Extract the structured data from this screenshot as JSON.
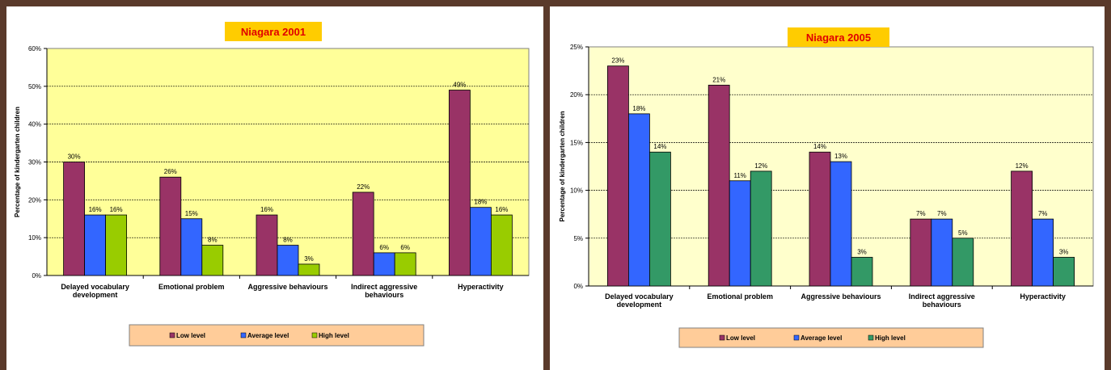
{
  "chart_data": [
    {
      "type": "bar",
      "title": "Niagara 2001",
      "ylabel": "Percentage of kindergarten children",
      "xlabel": "",
      "ylim": [
        0,
        60
      ],
      "yticks": [
        "0%",
        "10%",
        "20%",
        "30%",
        "40%",
        "50%",
        "60%"
      ],
      "categories": [
        [
          "Delayed vocabulary",
          "development"
        ],
        [
          "Emotional problem"
        ],
        [
          "Aggressive behaviours"
        ],
        [
          "Indirect aggressive",
          "behaviours"
        ],
        [
          "Hyperactivity"
        ]
      ],
      "series": [
        {
          "name": "Low level",
          "color": "#993366",
          "values": [
            30,
            26,
            16,
            22,
            49
          ]
        },
        {
          "name": "Average level",
          "color": "#3366ff",
          "values": [
            16,
            15,
            8,
            6,
            18
          ]
        },
        {
          "name": "High level",
          "color": "#99cc00",
          "values": [
            16,
            8,
            3,
            6,
            16
          ]
        }
      ],
      "legend_position": "bottom",
      "grid": true,
      "plot_background": "#ffff99"
    },
    {
      "type": "bar",
      "title": "Niagara 2005",
      "ylabel": "Percentage of kindergarten children",
      "xlabel": "",
      "ylim": [
        0,
        25
      ],
      "yticks": [
        "0%",
        "5%",
        "10%",
        "15%",
        "20%",
        "25%"
      ],
      "categories": [
        [
          "Delayed vocabulary",
          "development"
        ],
        [
          "Emotional problem"
        ],
        [
          "Aggressive behaviours"
        ],
        [
          "Indirect aggressive",
          "behaviours"
        ],
        [
          "Hyperactivity"
        ]
      ],
      "series": [
        {
          "name": "Low level",
          "color": "#993366",
          "values": [
            23,
            21,
            14,
            7,
            12
          ]
        },
        {
          "name": "Average level",
          "color": "#3366ff",
          "values": [
            18,
            11,
            13,
            7,
            7
          ]
        },
        {
          "name": "High level",
          "color": "#339966",
          "values": [
            14,
            12,
            3,
            5,
            3
          ]
        }
      ],
      "legend_position": "bottom",
      "grid": true,
      "plot_background": "#ffffcc"
    }
  ]
}
